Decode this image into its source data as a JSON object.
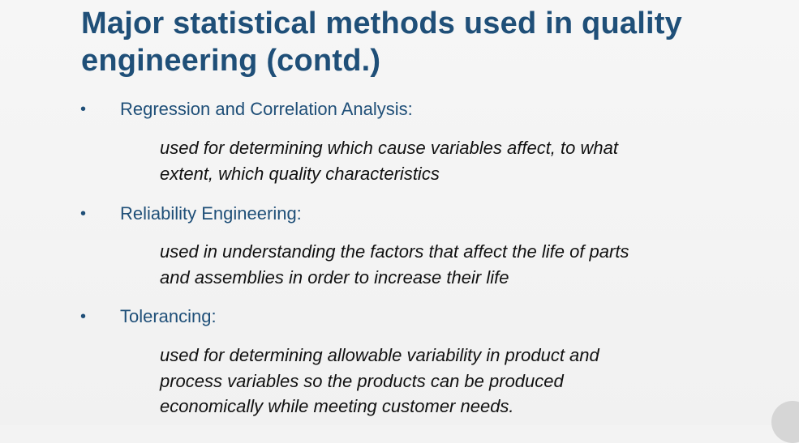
{
  "slide": {
    "title_line1": "Major statistical methods used in quality",
    "title_line2": "engineering (contd.)",
    "bullet_symbol": "•",
    "items": [
      {
        "heading": "Regression and Correlation Analysis:",
        "desc_lines": [
          "used for determining which cause variables affect, to what",
          "extent, which quality characteristics"
        ]
      },
      {
        "heading": "Reliability Engineering:",
        "desc_lines": [
          "used in understanding the factors that affect the life of parts",
          "and assemblies in order to increase their life"
        ]
      },
      {
        "heading": "Tolerancing:",
        "desc_lines": [
          "used for determining allowable variability in product and",
          "process variables so the products can be produced",
          "economically while meeting customer needs."
        ]
      }
    ]
  },
  "colors": {
    "heading": "#1f4f78",
    "body": "#111111",
    "background": "#f3f3f3"
  }
}
